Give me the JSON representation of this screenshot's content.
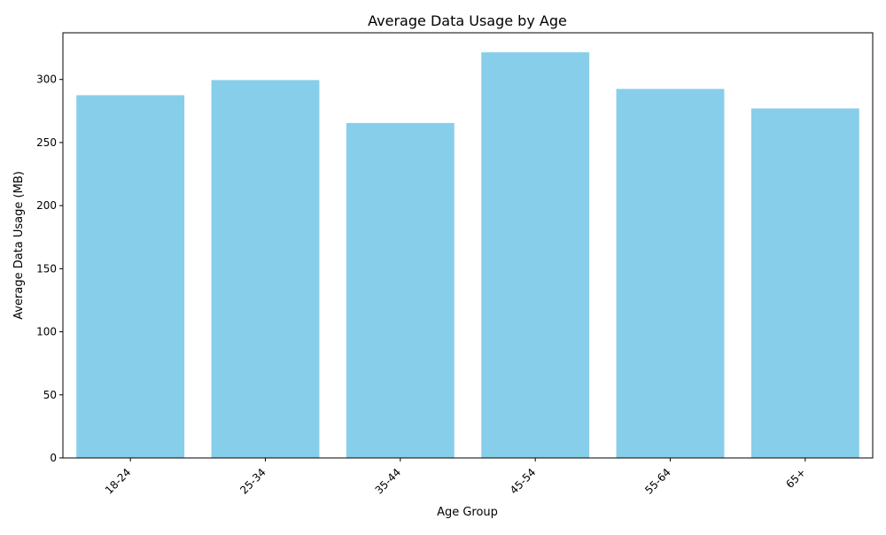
{
  "chart_data": {
    "type": "bar",
    "title": "Average Data Usage by Age",
    "xlabel": "Age Group",
    "ylabel": "Average Data Usage (MB)",
    "categories": [
      "18-24",
      "25-34",
      "35-44",
      "45-54",
      "55-64",
      "65+"
    ],
    "values": [
      287.5,
      299.5,
      265.5,
      321.5,
      292.5,
      277.0
    ],
    "ylim": [
      0,
      337
    ],
    "yticks": [
      0,
      50,
      100,
      150,
      200,
      250,
      300
    ],
    "xtick_rotation_deg": 45,
    "bar_color": "#87ceeb",
    "grid": false,
    "legend": false
  }
}
